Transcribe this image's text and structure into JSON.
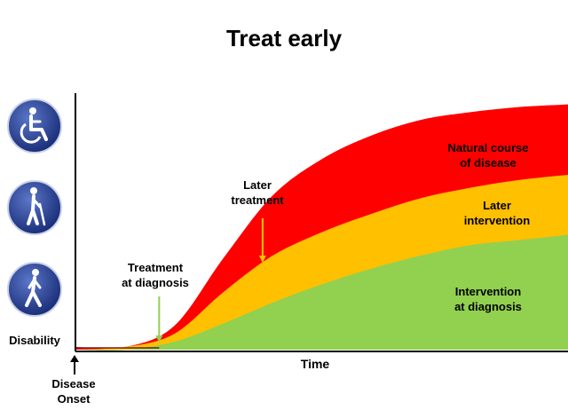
{
  "chart_data": {
    "type": "area",
    "title": "Treat early",
    "xlabel": "Time",
    "ylabel": "Disability",
    "x_axis_start_label": "Disease Onset",
    "ticks": "none",
    "series": [
      {
        "name": "Natural course of disease",
        "color": "#ff0000",
        "x": [
          0,
          10,
          20,
          30,
          40,
          50,
          60,
          70,
          80,
          90,
          100
        ],
        "values": [
          1,
          1,
          9,
          35,
          59,
          73,
          82,
          88,
          91,
          93,
          94
        ]
      },
      {
        "name": "Later intervention",
        "color": "#ffc000",
        "x": [
          0,
          10,
          20,
          30,
          40,
          50,
          60,
          70,
          80,
          90,
          100
        ],
        "values": [
          0,
          1,
          6,
          22,
          36,
          45,
          52,
          58,
          62,
          65,
          67
        ]
      },
      {
        "name": "Intervention at diagnosis",
        "color": "#92d050",
        "x": [
          0,
          10,
          20,
          30,
          40,
          50,
          60,
          70,
          80,
          90,
          100
        ],
        "values": [
          0,
          0,
          3,
          10,
          18,
          25,
          31,
          36,
          40,
          42,
          44
        ]
      }
    ],
    "annotations": [
      {
        "text": "Treatment at diagnosis",
        "x": 17,
        "arrow_color": "#92d050"
      },
      {
        "text": "Later treatment",
        "x": 38,
        "arrow_color": "#ffc000"
      }
    ],
    "y_icons": [
      "wheelchair-icon",
      "walking-cane-icon",
      "walking-person-icon"
    ],
    "xlim": [
      0,
      100
    ],
    "ylim": [
      0,
      100
    ],
    "grid": false,
    "legend": "none"
  },
  "labels": {
    "title": "Treat early",
    "natural_1": "Natural course",
    "natural_2": "of disease",
    "later_int_1": "Later",
    "later_int_2": "intervention",
    "diag_int_1": "Intervention",
    "diag_int_2": "at diagnosis",
    "later_treat_1": "Later",
    "later_treat_2": "treatment",
    "treat_diag_1": "Treatment",
    "treat_diag_2": "at diagnosis",
    "disability": "Disability",
    "time": "Time",
    "onset_1": "Disease",
    "onset_2": "Onset"
  }
}
